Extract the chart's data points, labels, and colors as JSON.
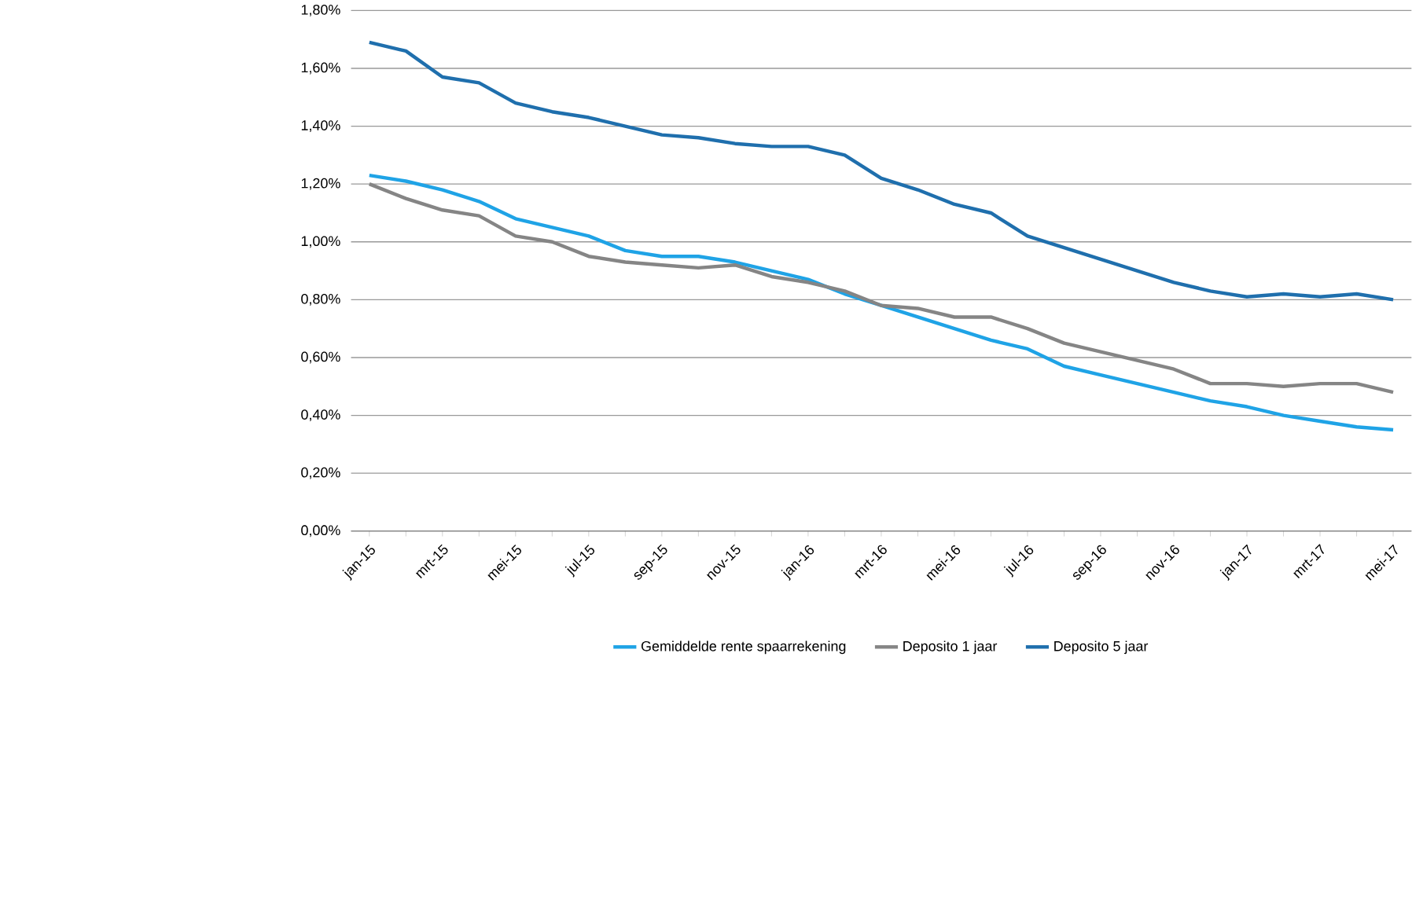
{
  "chart_data": {
    "type": "line",
    "categories": [
      "jan-15",
      null,
      "mrt-15",
      null,
      "mei-15",
      null,
      "jul-15",
      null,
      "sep-15",
      null,
      "nov-15",
      null,
      "jan-16",
      null,
      "mrt-16",
      null,
      "mei-16",
      null,
      "jul-16",
      null,
      "sep-16",
      null,
      "nov-16",
      null,
      "jan-17",
      null,
      "mrt-17",
      null,
      "mei-17"
    ],
    "series": [
      {
        "name": "Gemiddelde rente spaarrekening",
        "color": "#1fa3e6",
        "values": [
          1.23,
          1.21,
          1.18,
          1.14,
          1.08,
          1.05,
          1.02,
          0.97,
          0.95,
          0.95,
          0.93,
          0.9,
          0.87,
          0.82,
          0.78,
          0.74,
          0.7,
          0.66,
          0.63,
          0.57,
          0.54,
          0.51,
          0.48,
          0.45,
          0.43,
          0.4,
          0.38,
          0.36,
          0.35
        ]
      },
      {
        "name": "Deposito 1 jaar",
        "color": "#858585",
        "values": [
          1.2,
          1.15,
          1.11,
          1.09,
          1.02,
          1.0,
          0.95,
          0.93,
          0.92,
          0.91,
          0.92,
          0.88,
          0.86,
          0.83,
          0.78,
          0.77,
          0.74,
          0.74,
          0.7,
          0.65,
          0.62,
          0.59,
          0.56,
          0.51,
          0.51,
          0.5,
          0.51,
          0.51,
          0.48
        ]
      },
      {
        "name": "Deposito 5 jaar",
        "color": "#1f6fad",
        "values": [
          1.69,
          1.66,
          1.57,
          1.55,
          1.48,
          1.45,
          1.43,
          1.4,
          1.37,
          1.36,
          1.34,
          1.33,
          1.33,
          1.3,
          1.22,
          1.18,
          1.13,
          1.1,
          1.02,
          0.98,
          0.94,
          0.9,
          0.86,
          0.83,
          0.81,
          0.82,
          0.81,
          0.82,
          0.8
        ]
      }
    ],
    "ylim": [
      0,
      1.8
    ],
    "yticks": [
      {
        "value": 0,
        "label": "0,00%"
      },
      {
        "value": 0.2,
        "label": "0,20%"
      },
      {
        "value": 0.4,
        "label": "0,40%"
      },
      {
        "value": 0.6,
        "label": "0,60%"
      },
      {
        "value": 0.8,
        "label": "0,80%"
      },
      {
        "value": 1.0,
        "label": "1,00%"
      },
      {
        "value": 1.2,
        "label": "1,20%"
      },
      {
        "value": 1.4,
        "label": "1,40%"
      },
      {
        "value": 1.6,
        "label": "1,60%"
      },
      {
        "value": 1.8,
        "label": "1,80%"
      }
    ],
    "grid": "y",
    "legend": "bottom",
    "marker": "none",
    "line_style": "solid"
  }
}
